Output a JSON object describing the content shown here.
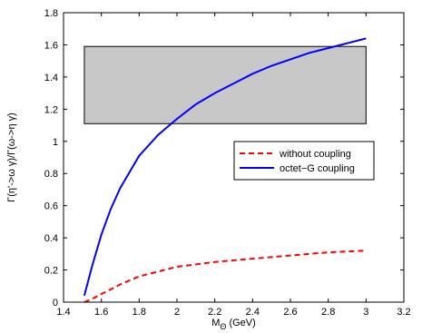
{
  "chart_data": {
    "type": "line",
    "title": "",
    "xlabel_main": "M",
    "xlabel_sub": "Θ",
    "xlabel_unit": " (GeV)",
    "ylabel": "Γ(η'->ω γ)/Γ(ω->η γ)",
    "xlim": [
      1.4,
      3.2
    ],
    "ylim": [
      0,
      1.8
    ],
    "xticks": [
      "1.4",
      "1.6",
      "1.8",
      "2",
      "2.2",
      "2.4",
      "2.6",
      "2.8",
      "3",
      "3.2"
    ],
    "yticks": [
      "0",
      "0.2",
      "0.4",
      "0.6",
      "0.8",
      "1",
      "1.2",
      "1.4",
      "1.6",
      "1.8"
    ],
    "grid": false,
    "legend_position": "center-right",
    "band": {
      "x": [
        1.51,
        3.0
      ],
      "y": [
        1.11,
        1.59
      ],
      "color": "#c8c8c8"
    },
    "series": [
      {
        "name": "without coupling",
        "color": "#ff0000",
        "style": "dashed",
        "x": [
          1.51,
          1.55,
          1.6,
          1.7,
          1.8,
          1.9,
          2.0,
          2.2,
          2.4,
          2.6,
          2.8,
          3.0
        ],
        "y": [
          0.0,
          0.02,
          0.05,
          0.11,
          0.16,
          0.19,
          0.22,
          0.25,
          0.27,
          0.29,
          0.31,
          0.32
        ]
      },
      {
        "name": "octet−G coupling",
        "color": "#0000ff",
        "style": "solid",
        "x": [
          1.51,
          1.55,
          1.6,
          1.65,
          1.7,
          1.8,
          1.9,
          2.0,
          2.1,
          2.2,
          2.3,
          2.4,
          2.5,
          2.6,
          2.7,
          2.8,
          2.9,
          3.0
        ],
        "y": [
          0.04,
          0.22,
          0.42,
          0.58,
          0.71,
          0.91,
          1.04,
          1.14,
          1.23,
          1.3,
          1.36,
          1.42,
          1.47,
          1.51,
          1.55,
          1.58,
          1.61,
          1.64
        ]
      }
    ]
  }
}
